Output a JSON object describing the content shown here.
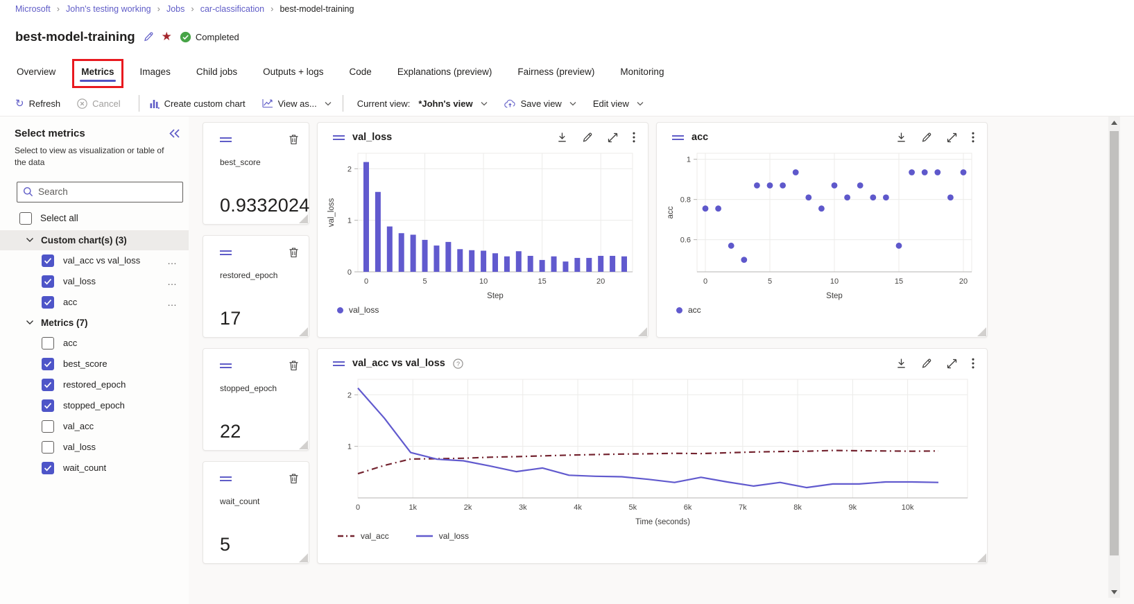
{
  "breadcrumb": {
    "items": [
      {
        "label": "Microsoft",
        "link": true
      },
      {
        "label": "John's testing working",
        "link": true
      },
      {
        "label": "Jobs",
        "link": true
      },
      {
        "label": "car-classification",
        "link": true
      },
      {
        "label": "best-model-training",
        "link": false
      }
    ]
  },
  "header": {
    "title": "best-model-training",
    "status": "Completed"
  },
  "tabs": {
    "items": [
      "Overview",
      "Metrics",
      "Images",
      "Child jobs",
      "Outputs + logs",
      "Code",
      "Explanations (preview)",
      "Fairness (preview)",
      "Monitoring"
    ],
    "active": "Metrics",
    "annotation": "red box around Metrics tab"
  },
  "toolbar": {
    "refresh_label": "Refresh",
    "cancel_label": "Cancel",
    "create_custom_chart_label": "Create custom chart",
    "view_as_label": "View as...",
    "current_view_label": "Current view:",
    "current_view_value": "*John's view",
    "save_view_label": "Save view",
    "edit_view_label": "Edit view"
  },
  "sidebar": {
    "title": "Select metrics",
    "subtitle": "Select to view as visualization or table of the data",
    "search_placeholder": "Search",
    "select_all_label": "Select all",
    "sections": [
      {
        "label": "Custom chart(s) (3)",
        "highlighted": true,
        "items": [
          {
            "label": "val_acc vs val_loss",
            "checked": true,
            "more": true
          },
          {
            "label": "val_loss",
            "checked": true,
            "more": true
          },
          {
            "label": "acc",
            "checked": true,
            "more": true
          }
        ]
      },
      {
        "label": "Metrics (7)",
        "highlighted": false,
        "items": [
          {
            "label": "acc",
            "checked": false
          },
          {
            "label": "best_score",
            "checked": true
          },
          {
            "label": "restored_epoch",
            "checked": true
          },
          {
            "label": "stopped_epoch",
            "checked": true
          },
          {
            "label": "val_acc",
            "checked": false
          },
          {
            "label": "val_loss",
            "checked": false
          },
          {
            "label": "wait_count",
            "checked": true
          }
        ]
      }
    ]
  },
  "metric_cards": [
    {
      "name": "best_score",
      "value": "0.9332024"
    },
    {
      "name": "restored_epoch",
      "value": "17"
    },
    {
      "name": "stopped_epoch",
      "value": "22"
    },
    {
      "name": "wait_count",
      "value": "5"
    }
  ],
  "colors": {
    "accent_purple": "#5f5cc7",
    "checkbox_blue": "#4e55c8",
    "series_purple": "#615ace",
    "series_maroon": "#73232f",
    "completed_green": "#47a447",
    "favorite_maroon": "#a4262c",
    "annotation_red": "#e8191f",
    "tab_underline": "#4f52c2"
  },
  "chart_data": [
    {
      "id": "val_loss",
      "type": "bar",
      "title": "val_loss",
      "xlabel": "Step",
      "ylabel": "val_loss",
      "x": [
        0,
        1,
        2,
        3,
        4,
        5,
        6,
        7,
        8,
        9,
        10,
        11,
        12,
        13,
        14,
        15,
        16,
        17,
        18,
        19,
        20,
        21,
        22
      ],
      "values": [
        2.13,
        1.55,
        0.88,
        0.75,
        0.72,
        0.62,
        0.51,
        0.58,
        0.44,
        0.42,
        0.41,
        0.36,
        0.3,
        0.4,
        0.31,
        0.23,
        0.3,
        0.2,
        0.27,
        0.27,
        0.31,
        0.31,
        0.3
      ],
      "xticks": [
        0,
        5,
        10,
        15,
        20
      ],
      "yticks": [
        0,
        1,
        2
      ],
      "ylim": [
        0,
        2.3
      ],
      "grid": true,
      "legend": [
        {
          "label": "val_loss",
          "color": "#615ace",
          "marker": "dot"
        }
      ],
      "legend_position": "bottom-left"
    },
    {
      "id": "acc",
      "type": "scatter",
      "title": "acc",
      "xlabel": "Step",
      "ylabel": "acc",
      "x": [
        0,
        1,
        2,
        3,
        4,
        5,
        6,
        7,
        8,
        9,
        10,
        11,
        12,
        13,
        14,
        15,
        16,
        17,
        18,
        19,
        20
      ],
      "values": [
        0.755,
        0.755,
        0.57,
        0.5,
        0.87,
        0.87,
        0.87,
        0.935,
        0.81,
        0.755,
        0.87,
        0.81,
        0.87,
        0.81,
        0.81,
        0.57,
        0.935,
        0.935,
        0.935,
        0.81,
        0.935
      ],
      "xticks": [
        0,
        5,
        10,
        15,
        20
      ],
      "yticks": [
        0.6,
        0.8,
        1
      ],
      "ylim": [
        0.44,
        1.03
      ],
      "grid": true,
      "legend": [
        {
          "label": "acc",
          "color": "#615ace",
          "marker": "dot"
        }
      ],
      "legend_position": "bottom-left"
    },
    {
      "id": "val_acc_vs_val_loss",
      "type": "line",
      "title": "val_acc vs val_loss",
      "has_help_icon": true,
      "xlabel": "Time (seconds)",
      "x": [
        0,
        480,
        960,
        1440,
        1920,
        2400,
        2880,
        3360,
        3840,
        4320,
        4800,
        5280,
        5760,
        6240,
        6720,
        7200,
        7680,
        8160,
        8640,
        9120,
        9600,
        10080,
        10560
      ],
      "series": [
        {
          "name": "val_acc",
          "color": "#73232f",
          "style": "dashdot",
          "values": [
            0.47,
            0.63,
            0.755,
            0.76,
            0.77,
            0.79,
            0.8,
            0.815,
            0.83,
            0.84,
            0.85,
            0.855,
            0.865,
            0.86,
            0.875,
            0.89,
            0.9,
            0.905,
            0.92,
            0.915,
            0.91,
            0.905,
            0.91
          ]
        },
        {
          "name": "val_loss",
          "color": "#615ace",
          "style": "solid",
          "values": [
            2.13,
            1.55,
            0.88,
            0.75,
            0.72,
            0.62,
            0.51,
            0.58,
            0.44,
            0.42,
            0.41,
            0.36,
            0.3,
            0.4,
            0.31,
            0.23,
            0.3,
            0.2,
            0.27,
            0.27,
            0.31,
            0.31,
            0.3
          ]
        }
      ],
      "xticks": [
        0,
        1000,
        2000,
        3000,
        4000,
        5000,
        6000,
        7000,
        8000,
        9000,
        10000
      ],
      "xtick_labels": [
        "0",
        "1k",
        "2k",
        "3k",
        "4k",
        "5k",
        "6k",
        "7k",
        "8k",
        "9k",
        "10k"
      ],
      "yticks": [
        1,
        2
      ],
      "ylim": [
        0,
        2.3
      ],
      "grid": true,
      "legend_position": "bottom-left"
    }
  ]
}
